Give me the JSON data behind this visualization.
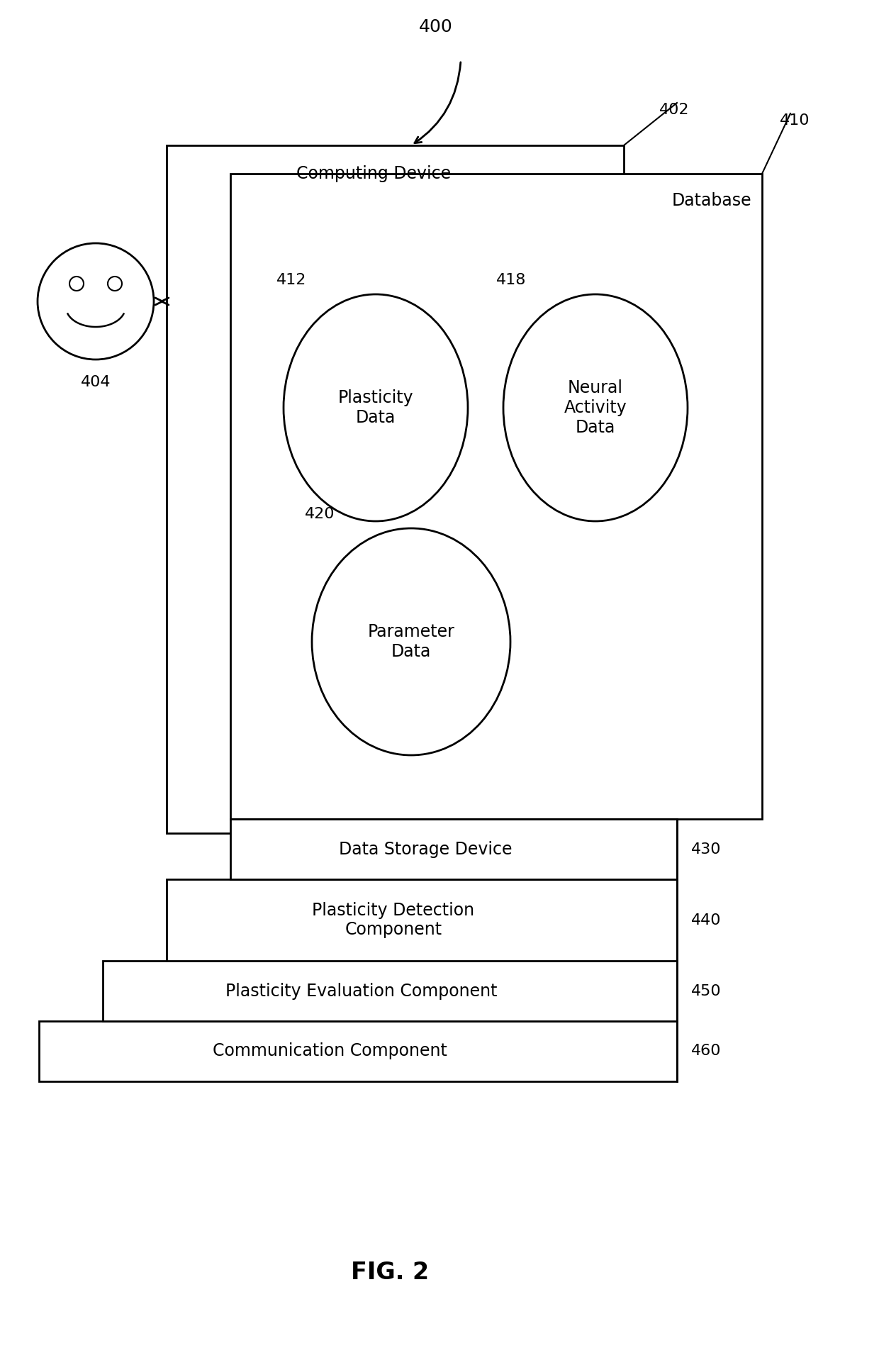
{
  "bg_color": "#ffffff",
  "fig_width": 12.4,
  "fig_height": 19.25,
  "title": "FIG. 2",
  "label_400": "400",
  "label_402": "402",
  "label_404": "404",
  "label_410": "410",
  "label_412": "412",
  "label_418": "418",
  "label_420": "420",
  "label_430": "430",
  "label_440": "440",
  "label_450": "450",
  "label_460": "460",
  "text_computing_device": "Computing Device",
  "text_database": "Database",
  "text_plasticity_data": "Plasticity\nData",
  "text_neural_activity_data": "Neural\nActivity\nData",
  "text_parameter_data": "Parameter\nData",
  "text_data_storage": "Data Storage Device",
  "text_plasticity_detection": "Plasticity Detection\nComponent",
  "text_plasticity_evaluation": "Plasticity Evaluation Component",
  "text_communication": "Communication Component",
  "font_size_box_labels": 17,
  "font_size_title": 24,
  "font_size_ref": 16
}
